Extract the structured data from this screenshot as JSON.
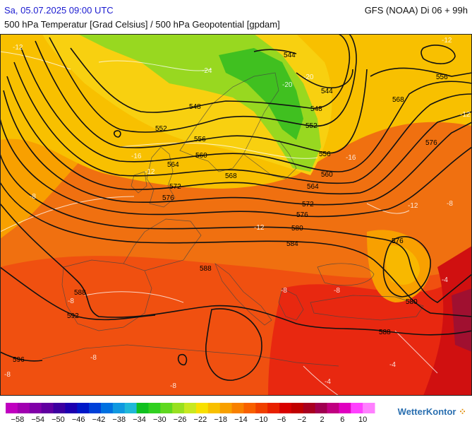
{
  "header": {
    "date": "Sa, 05.07.2025 09:00 UTC",
    "model": "GFS (NOAA) Di 06 + 99h",
    "subtitle": "500 hPa Temperatur [Grad Celsius] / 500 hPa Geopotential [gpdam]"
  },
  "colorbar": {
    "labels": [
      "−58",
      "−54",
      "−50",
      "−46",
      "−42",
      "−38",
      "−34",
      "−30",
      "−26",
      "−22",
      "−18",
      "−14",
      "−10",
      "−6",
      "−2",
      "2",
      "6",
      "10"
    ],
    "colors": [
      "#c000c0",
      "#a000b0",
      "#8000a8",
      "#6000a0",
      "#3c00a0",
      "#1c00b0",
      "#0018c8",
      "#0040d8",
      "#0070e0",
      "#1098e0",
      "#20b8d8",
      "#10c020",
      "#30d020",
      "#60d820",
      "#98e020",
      "#c8e820",
      "#f8e000",
      "#f8c000",
      "#f8a000",
      "#f88000",
      "#f86000",
      "#f04000",
      "#e82000",
      "#d80000",
      "#c00000",
      "#a80020",
      "#a00050",
      "#c00080",
      "#e000c0",
      "#ff40ff",
      "#ff80ff"
    ]
  },
  "contours": {
    "geopotential": [
      "544",
      "544",
      "548",
      "548",
      "552",
      "552",
      "556",
      "556",
      "556",
      "560",
      "560",
      "564",
      "564",
      "568",
      "568",
      "572",
      "572",
      "576",
      "576",
      "576",
      "576",
      "580",
      "580",
      "584",
      "588",
      "588",
      "588",
      "592",
      "596"
    ],
    "temperature": [
      "-12",
      "-12",
      "-24",
      "-20",
      "-20",
      "-16",
      "-16",
      "-12",
      "-12",
      "-12",
      "-8",
      "-8",
      "-12",
      "-8",
      "-8",
      "-8",
      "-8",
      "-8",
      "-4",
      "-4",
      "-8",
      "-4"
    ]
  },
  "brand": "WetterKontor"
}
